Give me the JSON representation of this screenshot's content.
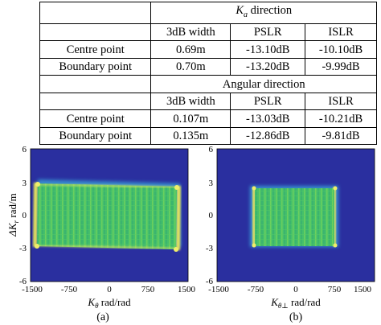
{
  "table": {
    "ka_header": "K",
    "ka_sub": "a",
    "ka_rest": " direction",
    "angular_header": "Angular direction",
    "col_headers": [
      "3dB width",
      "PSLR",
      "ISLR"
    ],
    "ka_rows": [
      {
        "label": "Centre point",
        "values": [
          "0.69m",
          "-13.10dB",
          "-10.10dB"
        ]
      },
      {
        "label": "Boundary point",
        "values": [
          "0.70m",
          "-13.20dB",
          "-9.99dB"
        ]
      }
    ],
    "angular_rows": [
      {
        "label": "Centre point",
        "values": [
          "0.107m",
          "-13.03dB",
          "-10.21dB"
        ]
      },
      {
        "label": "Boundary point",
        "values": [
          "0.135m",
          "-12.86dB",
          "-9.81dB"
        ]
      }
    ]
  },
  "figures": [
    {
      "caption": "(a)",
      "xlabel_sym": "K",
      "xlabel_sub": "θ",
      "xlabel_unit": " rad/rad",
      "ylabel_sym": "ΔK",
      "ylabel_sub": "r",
      "ylabel_unit": " rad/m",
      "xticks": [
        "-1500",
        "-750",
        "0",
        "750",
        "1500"
      ],
      "yticks": [
        "6",
        "3",
        "0",
        "-3",
        "-6"
      ]
    },
    {
      "caption": "(b)",
      "xlabel_sym": "K",
      "xlabel_sub": "θ⊥",
      "xlabel_unit": " rad/rad",
      "yticks": [
        "6",
        "3",
        "0",
        "-3",
        "-6"
      ],
      "xticks": [
        "-1500",
        "-750",
        "0",
        "750",
        "1500"
      ]
    }
  ],
  "colors": {
    "background": "#2a2fa0",
    "fill": "#3fb86a",
    "edge_yellow": "#e8e85a",
    "halo": "#3aa6d8"
  }
}
